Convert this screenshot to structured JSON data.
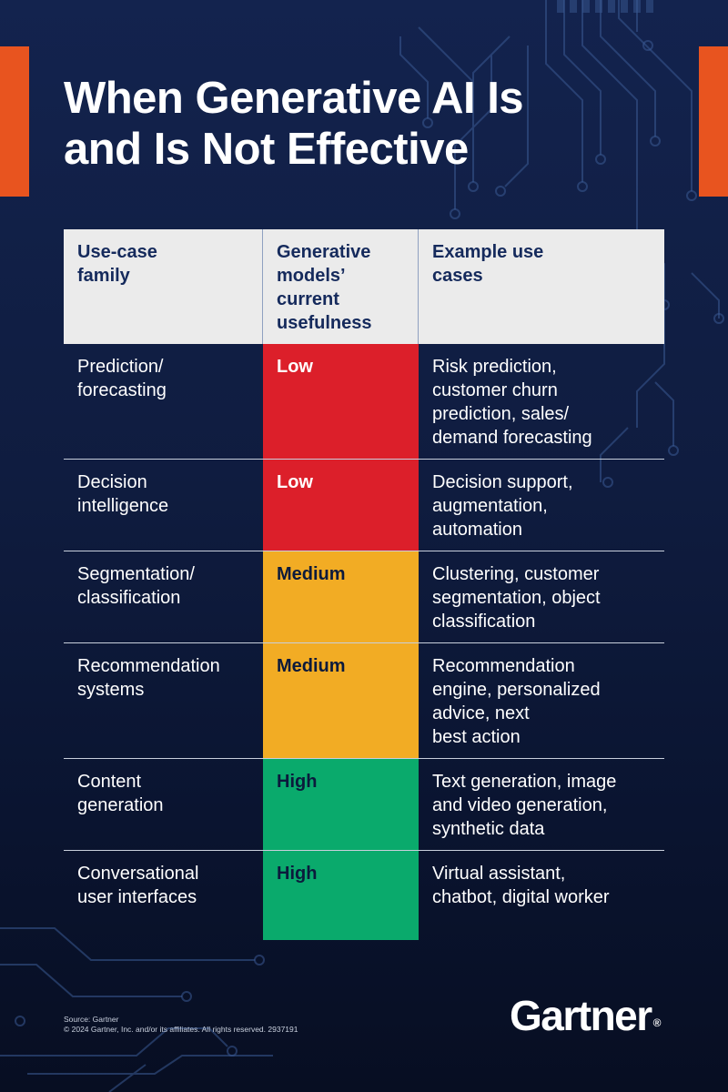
{
  "title": {
    "line1": "When Generative AI Is",
    "line2": "and Is Not Effective"
  },
  "table": {
    "headers": [
      [
        "Use-case",
        "family"
      ],
      [
        "Generative",
        "models’",
        "current",
        "usefulness"
      ],
      [
        "Example use",
        "cases"
      ]
    ],
    "rows": [
      {
        "family": [
          "Prediction/",
          "forecasting"
        ],
        "usefulness": "Low",
        "examples": [
          "Risk prediction,",
          "customer churn",
          "prediction, sales/",
          "demand forecasting"
        ]
      },
      {
        "family": [
          "Decision",
          "intelligence"
        ],
        "usefulness": "Low",
        "examples": [
          "Decision support,",
          "augmentation,",
          "automation"
        ]
      },
      {
        "family": [
          "Segmentation/",
          "classification"
        ],
        "usefulness": "Medium",
        "examples": [
          "Clustering, customer",
          "segmentation, object",
          "classification"
        ]
      },
      {
        "family": [
          "Recommendation",
          "systems"
        ],
        "usefulness": "Medium",
        "examples": [
          "Recommendation",
          "engine, personalized",
          "advice, next",
          "best action"
        ]
      },
      {
        "family": [
          "Content",
          "generation"
        ],
        "usefulness": "High",
        "examples": [
          "Text generation, image",
          "and video generation,",
          "synthetic data"
        ]
      },
      {
        "family": [
          "Conversational",
          "user interfaces"
        ],
        "usefulness": "High",
        "examples": [
          "Virtual assistant,",
          "chatbot, digital worker"
        ]
      }
    ]
  },
  "colors": {
    "low": "#dc1f2a",
    "medium": "#f2ac24",
    "high": "#0aaa6c",
    "accent": "#e8541f",
    "header_bg": "#ebebeb",
    "header_text": "#152a5c"
  },
  "footer": {
    "source": "Source: Gartner",
    "copyright": "© 2024 Gartner, Inc. and/or its affiliates. All rights reserved. 2937191"
  },
  "logo": {
    "text": "Gartner",
    "reg": "®"
  }
}
